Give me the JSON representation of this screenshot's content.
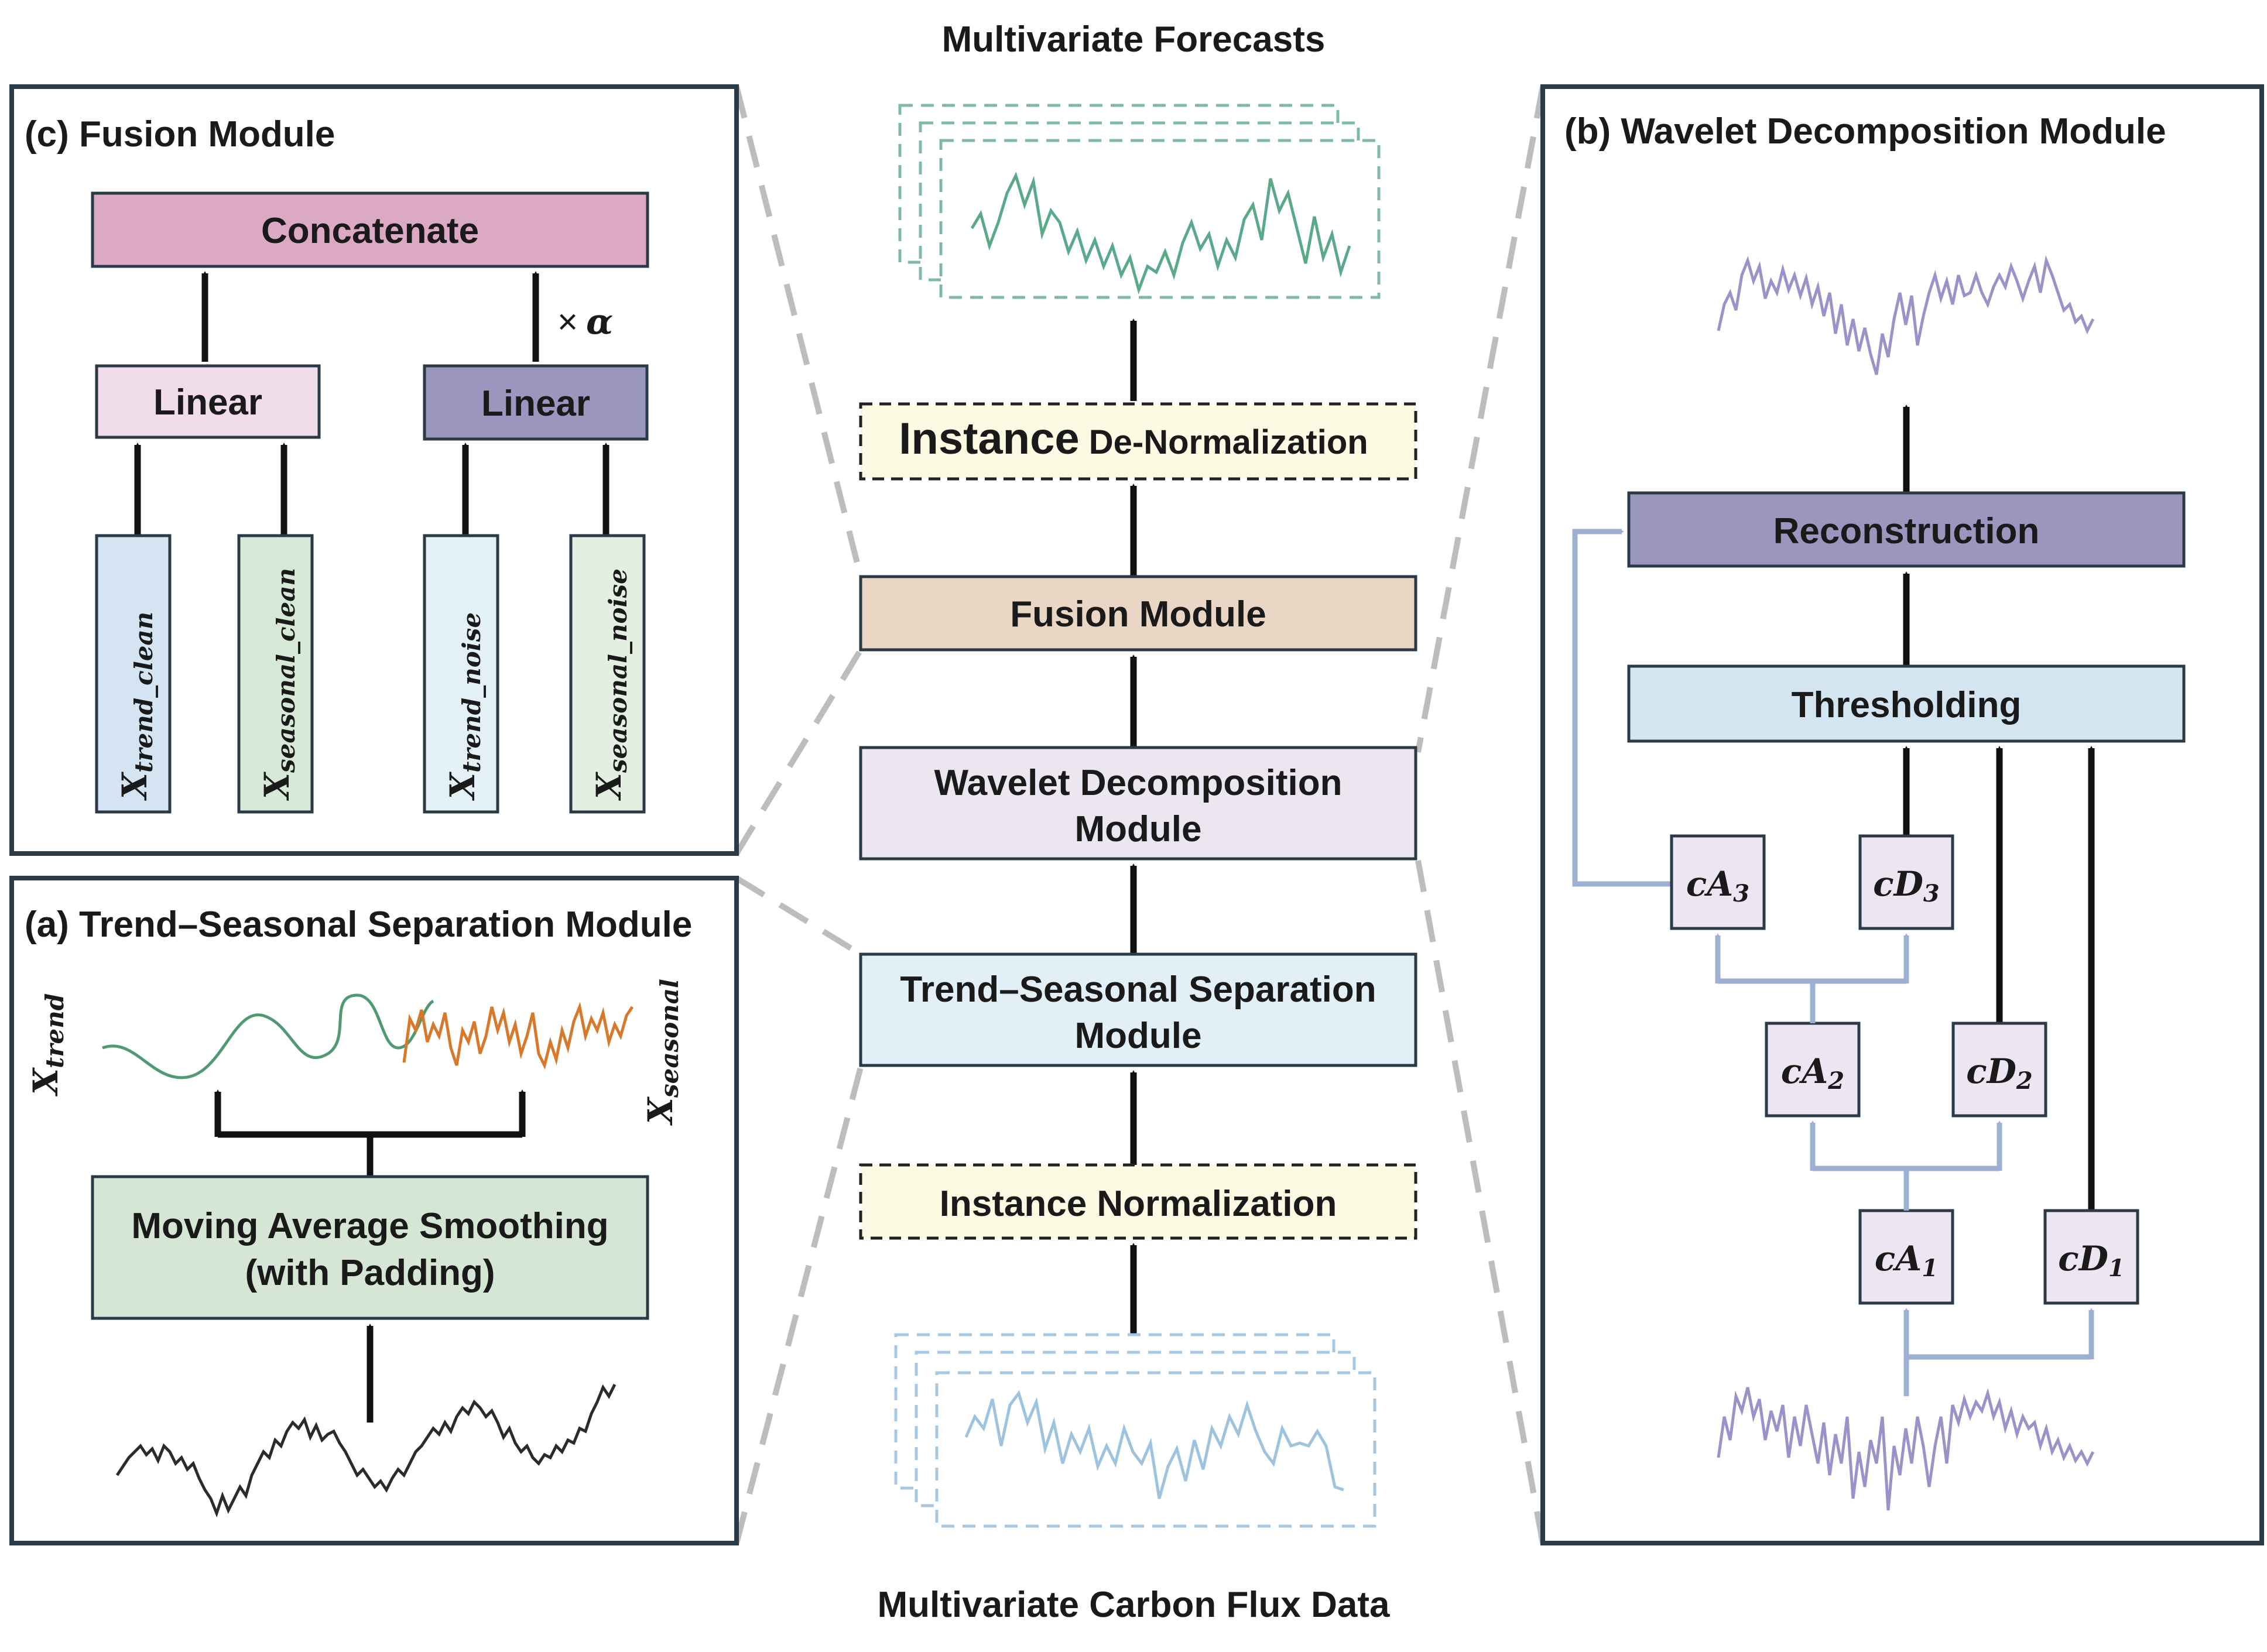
{
  "titles": {
    "top": "Multivariate Forecasts",
    "bottom": "Multivariate Carbon Flux Data"
  },
  "center": {
    "instance_denorm": {
      "prefix": "Instance",
      "rest": " De-Normalization"
    },
    "fusion": "Fusion Module",
    "wavelet": [
      "Wavelet Decomposition",
      "Module"
    ],
    "trend_seasonal": [
      "Trend–Seasonal Separation",
      "Module"
    ],
    "instance_norm": "Instance Normalization"
  },
  "panel_c": {
    "title": "(c) Fusion Module",
    "concatenate": "Concatenate",
    "linear_left": "Linear",
    "linear_right": "Linear",
    "alpha": {
      "times": "×",
      "symbol": "α"
    },
    "inputs": [
      {
        "base": "X",
        "sub": "trend_clean"
      },
      {
        "base": "X",
        "sub": "seasonal_clean"
      },
      {
        "base": "X",
        "sub": "trend_noise"
      },
      {
        "base": "X",
        "sub": "seasonal_noise"
      }
    ]
  },
  "panel_a": {
    "title": "(a) Trend–Seasonal Separation Module",
    "smoothing": [
      "Moving Average Smoothing",
      "(with Padding)"
    ],
    "trend_label": {
      "base": "X",
      "sub": "trend"
    },
    "seasonal_label": {
      "base": "X",
      "sub": "seasonal"
    }
  },
  "panel_b": {
    "title": "(b) Wavelet Decomposition Module",
    "reconstruction": "Reconstruction",
    "thresholding": "Thresholding",
    "coefficients": {
      "cA3": {
        "base": "cA",
        "sub": "3"
      },
      "cD3": {
        "base": "cD",
        "sub": "3"
      },
      "cA2": {
        "base": "cA",
        "sub": "2"
      },
      "cD2": {
        "base": "cD",
        "sub": "2"
      },
      "cA1": {
        "base": "cA",
        "sub": "1"
      },
      "cD1": {
        "base": "cD",
        "sub": "1"
      }
    }
  },
  "colors": {
    "panel_border": "#2b3a47",
    "connector_dash": "#bdbdbd",
    "arrow_black": "#111111",
    "arrow_blue": "#9db0d3",
    "concatenate_fill": "#dba9c4",
    "linear_light_fill": "#f1dcea",
    "linear_dark_fill": "#9b96bd",
    "input_blue": "#d4e4f2",
    "input_green": "#d6e8d6",
    "input_lightblue": "#e3f0f6",
    "input_lightgreen": "#e3efe1",
    "smoothing_fill": "#d6e6d4",
    "trend_curve": "#4f9a72",
    "seasonal_curve": "#d7782a",
    "raw_curve": "#2b2b2b",
    "denorm_fill": "#fcfae2",
    "fusion_fill": "#e9d6c4",
    "wavelet_fill": "#ece6f1",
    "trend_sep_fill": "#e2eff6",
    "norm_fill": "#fcfae2",
    "forecast_stack": "#7fbba3",
    "forecast_curve": "#5aaa8a",
    "input_stack": "#a6c8e2",
    "input_curve": "#9dc3df",
    "reconstruction_fill": "#9b96bd",
    "thresholding_fill": "#d4e5f2",
    "coefficient_fill": "#ede6f2",
    "wavelet_curve": "#9c92c9"
  },
  "icons": [
    "up-arrow-icon",
    "stacked-series-icon",
    "waveform-icon"
  ]
}
